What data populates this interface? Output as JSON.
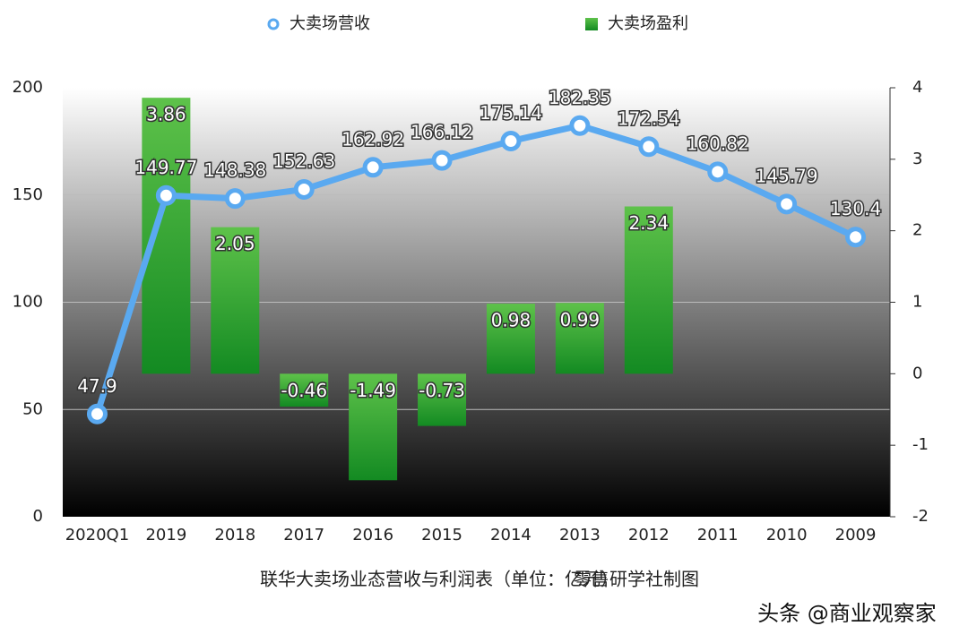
{
  "chart_data": {
    "type": "bar-line",
    "caption": "联华大卖场业态营收与利润表（单位：亿元）",
    "credit": "零售研学社制图",
    "watermark": "头条 @商业观察家",
    "categories": [
      "2020Q1",
      "2019",
      "2018",
      "2017",
      "2016",
      "2015",
      "2014",
      "2013",
      "2012",
      "2011",
      "2010",
      "2009"
    ],
    "series": [
      {
        "name": "大卖场营收",
        "kind": "line",
        "color": "#5aa9f0",
        "axis": "y",
        "values": [
          47.9,
          149.77,
          148.38,
          152.63,
          162.92,
          166.12,
          175.14,
          182.35,
          172.54,
          160.82,
          145.79,
          130.4
        ]
      },
      {
        "name": "大卖场盈利",
        "kind": "bar",
        "color": "#2a9a2a",
        "axis": "y2",
        "values": [
          null,
          3.86,
          2.05,
          -0.46,
          -1.49,
          -0.73,
          0.98,
          0.99,
          2.34,
          null,
          null,
          null
        ]
      }
    ],
    "ylim": [
      0,
      200
    ],
    "yticks": [
      0,
      50,
      100,
      150,
      200
    ],
    "y2lim": [
      -2,
      4
    ],
    "y2ticks": [
      -2,
      -1,
      0,
      1,
      2,
      3,
      4
    ],
    "grid": true,
    "legend": "top"
  }
}
